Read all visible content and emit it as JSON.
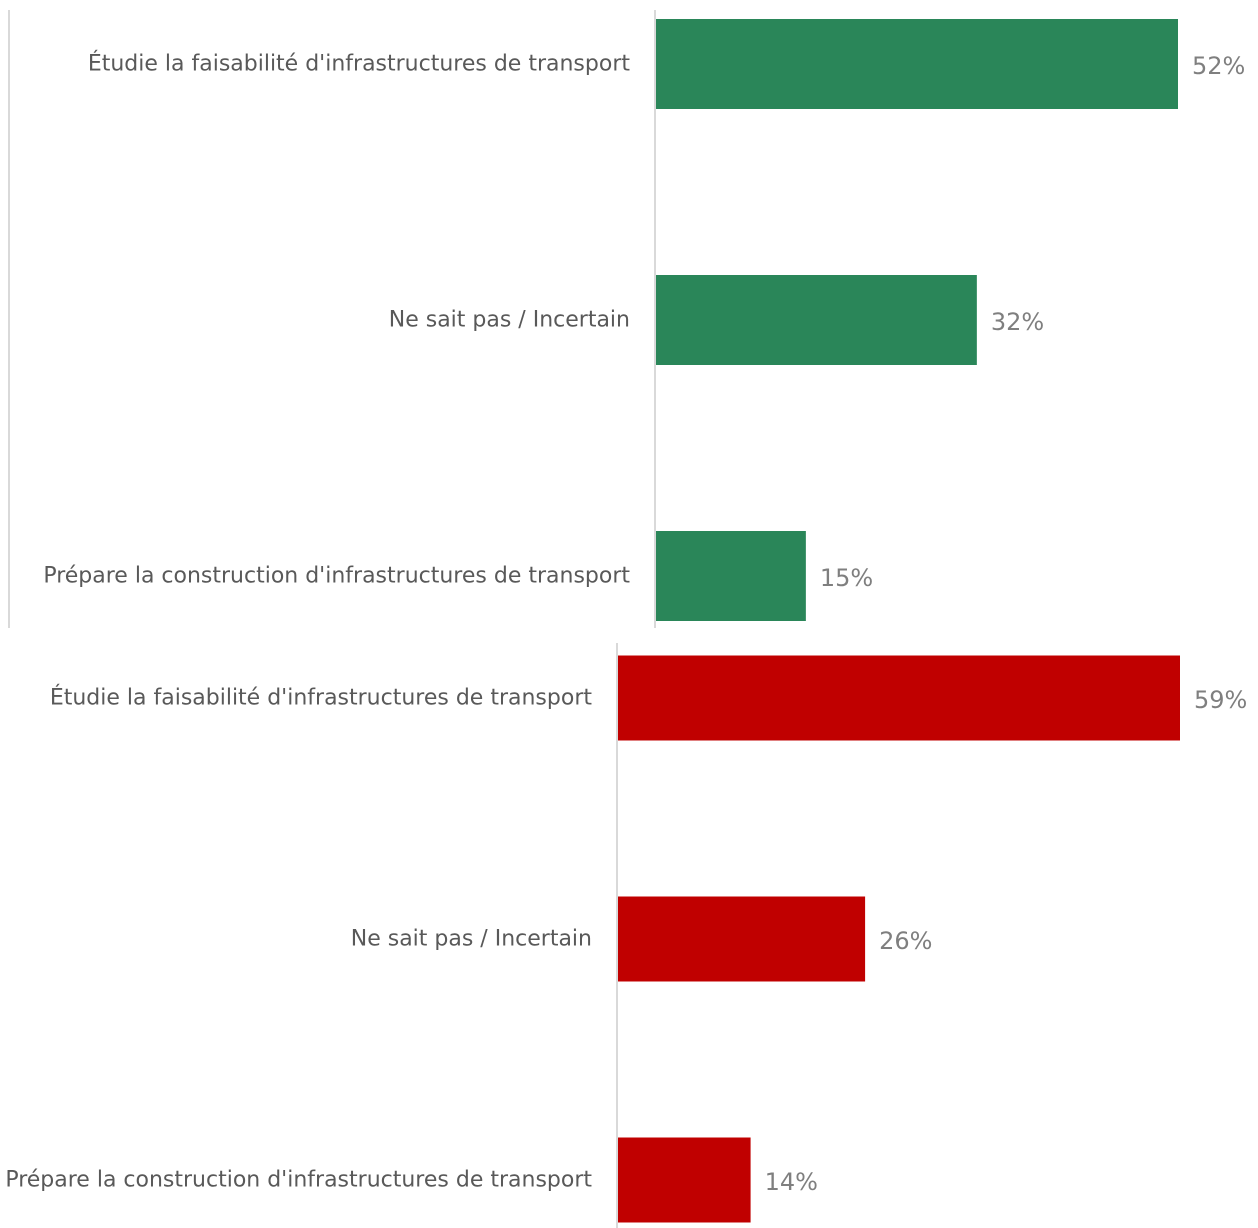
{
  "chart_data": [
    {
      "type": "bar",
      "orientation": "horizontal",
      "categories": [
        "Étudie la faisabilité d'infrastructures de transport",
        "Ne sait pas / Incertain",
        "Prépare la construction d'infrastructures de transport"
      ],
      "values": [
        52,
        32,
        15
      ],
      "value_labels": [
        "52%",
        "32%",
        "15%"
      ],
      "color": "#2a8659",
      "title": "",
      "xlabel": "",
      "ylabel": "",
      "xlim": [
        0,
        52
      ],
      "grid": false,
      "legend": "none"
    },
    {
      "type": "bar",
      "orientation": "horizontal",
      "categories": [
        "Étudie la faisabilité d'infrastructures de transport",
        "Ne sait pas / Incertain",
        "Prépare la construction d'infrastructures de transport"
      ],
      "values": [
        59,
        26,
        14
      ],
      "value_labels": [
        "59%",
        "26%",
        "14%"
      ],
      "color": "#c00000",
      "title": "",
      "xlabel": "",
      "ylabel": "",
      "xlim": [
        0,
        59
      ],
      "grid": false,
      "legend": "none"
    }
  ]
}
